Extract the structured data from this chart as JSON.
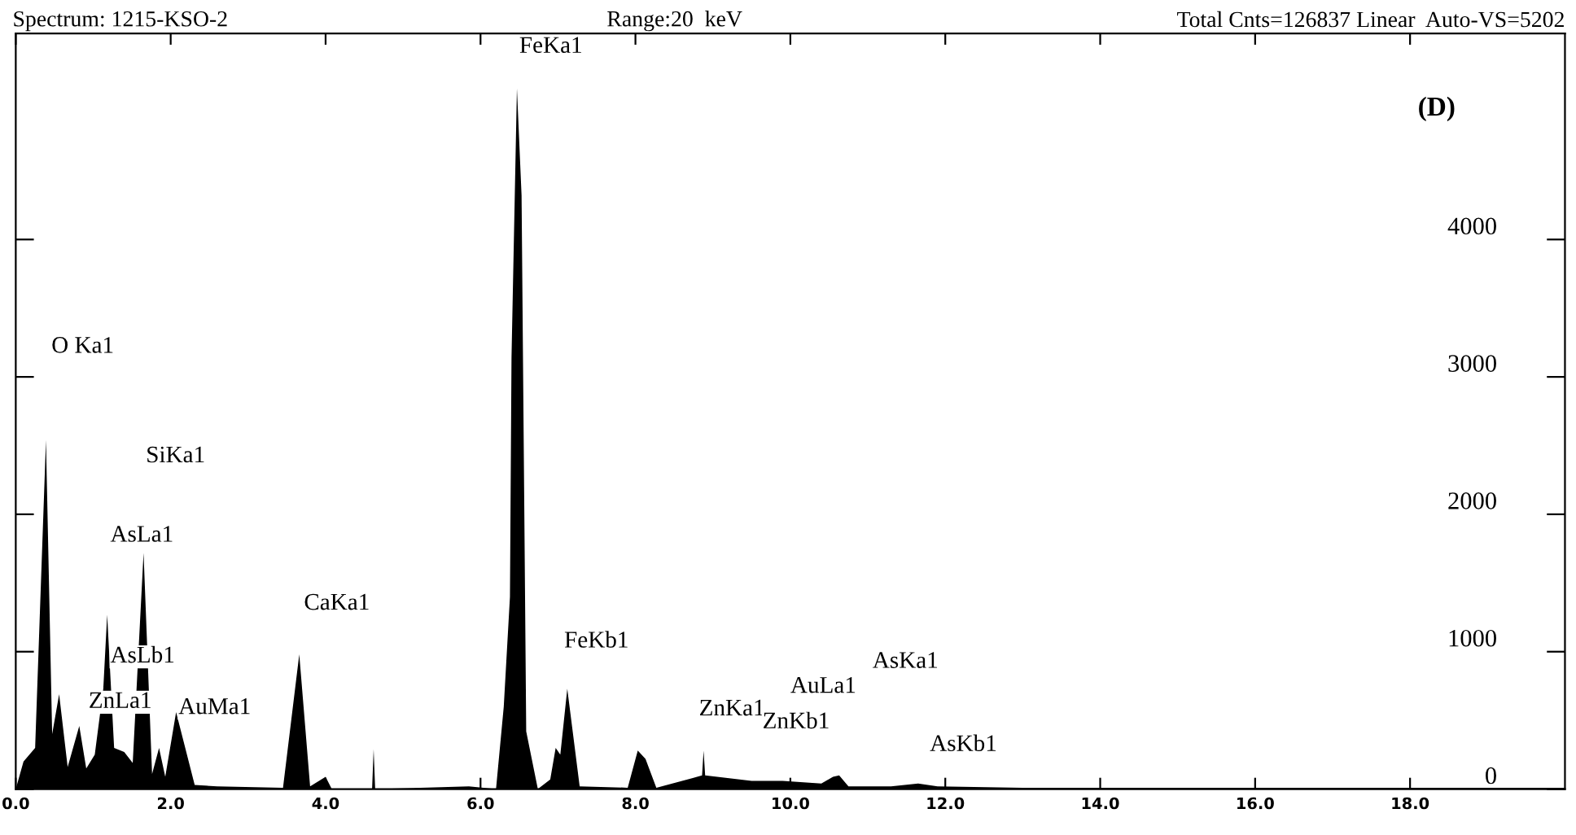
{
  "chart_data": {
    "type": "area",
    "title": "Spectrum: 1215-KSO-2",
    "subtitle": "Range:20  keV",
    "x": [
      0,
      0.1,
      0.25,
      0.39,
      0.47,
      0.56,
      0.67,
      0.82,
      0.91,
      1.02,
      1.13,
      1.18,
      1.27,
      1.4,
      1.51,
      1.65,
      1.76,
      1.85,
      1.93,
      2.07,
      2.31,
      2.6,
      3.45,
      3.66,
      3.8,
      4.0,
      4.08,
      4.6,
      4.62,
      4.64,
      5.85,
      6.2,
      6.3,
      6.38,
      6.4,
      6.47,
      6.53,
      6.59,
      6.74,
      6.9,
      6.97,
      7.03,
      7.12,
      7.28,
      7.9,
      8.03,
      8.13,
      8.27,
      8.74,
      8.86,
      8.88,
      8.9,
      9.5,
      9.9,
      10.4,
      10.55,
      10.63,
      10.75,
      11.3,
      11.65,
      11.9,
      13,
      20
    ],
    "series": [
      {
        "color": "#000000",
        "values": [
          0,
          200,
          300,
          2540,
          400,
          690,
          160,
          460,
          150,
          250,
          730,
          1270,
          300,
          270,
          190,
          1720,
          110,
          300,
          90,
          560,
          30,
          20,
          10,
          980,
          20,
          90,
          0,
          0,
          290,
          0,
          20,
          0,
          600,
          1400,
          3140,
          5100,
          4320,
          420,
          0,
          70,
          300,
          250,
          730,
          20,
          10,
          280,
          220,
          10,
          80,
          100,
          280,
          100,
          60,
          60,
          40,
          90,
          100,
          20,
          20,
          40,
          20,
          10,
          10
        ]
      }
    ],
    "xlim": [
      0,
      20
    ],
    "ylim": [
      0,
      5500
    ],
    "xticks": [
      {
        "value": 0,
        "label": "0.0"
      },
      {
        "value": 2,
        "label": "2.0"
      },
      {
        "value": 4,
        "label": "4.0"
      },
      {
        "value": 6,
        "label": "6.0"
      },
      {
        "value": 8,
        "label": "8.0"
      },
      {
        "value": 10,
        "label": "10.0"
      },
      {
        "value": 12,
        "label": "12.0"
      },
      {
        "value": 14,
        "label": "14.0"
      },
      {
        "value": 16,
        "label": "16.0"
      },
      {
        "value": 18,
        "label": "18.0"
      }
    ],
    "yticks": [
      0,
      1000,
      2000,
      3000,
      4000
    ],
    "annotations": [
      "Total Cnts=126837 Linear  Auto-VS=5202",
      "(D)",
      "O Ka1",
      "SiKa1",
      "AsLa1",
      "AsLb1",
      "ZnLa1",
      "AuMa1",
      "CaKa1",
      "FeKa1",
      "FeKb1",
      "ZnKa1",
      "ZnKb1",
      "AuLa1",
      "AsKa1",
      "AsKb1"
    ]
  }
}
